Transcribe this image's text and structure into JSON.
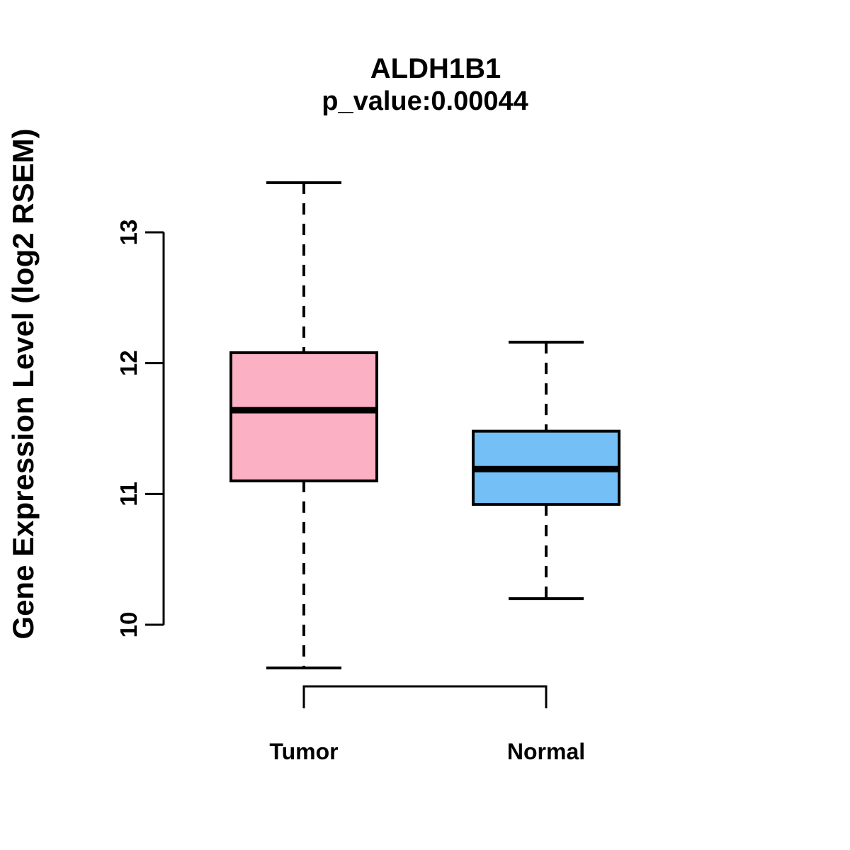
{
  "title": "ALDH1B1",
  "subtitle": "p_value:0.00044",
  "y_axis_label": "Gene Expression Level (log2 RSEM)",
  "chart_data": {
    "type": "boxplot",
    "title": "ALDH1B1",
    "subtitle": "p_value:0.00044",
    "xlabel": "",
    "ylabel": "Gene Expression Level (log2 RSEM)",
    "ylim": [
      10,
      13
    ],
    "yticks": [
      "10",
      "11",
      "12",
      "13"
    ],
    "categories": [
      "Tumor",
      "Normal"
    ],
    "grid": "off",
    "legend": "none",
    "series": [
      {
        "name": "Tumor",
        "fill_color": "#FBB0C3",
        "lower_whisker": 9.67,
        "q1": 11.1,
        "median": 11.64,
        "q3": 12.08,
        "upper_whisker": 13.38
      },
      {
        "name": "Normal",
        "fill_color": "#73BFF6",
        "lower_whisker": 10.2,
        "q1": 10.92,
        "median": 11.19,
        "q3": 11.48,
        "upper_whisker": 12.16
      }
    ],
    "style": {
      "stroke_color": "#000000",
      "whisker_style": "dashed"
    }
  }
}
